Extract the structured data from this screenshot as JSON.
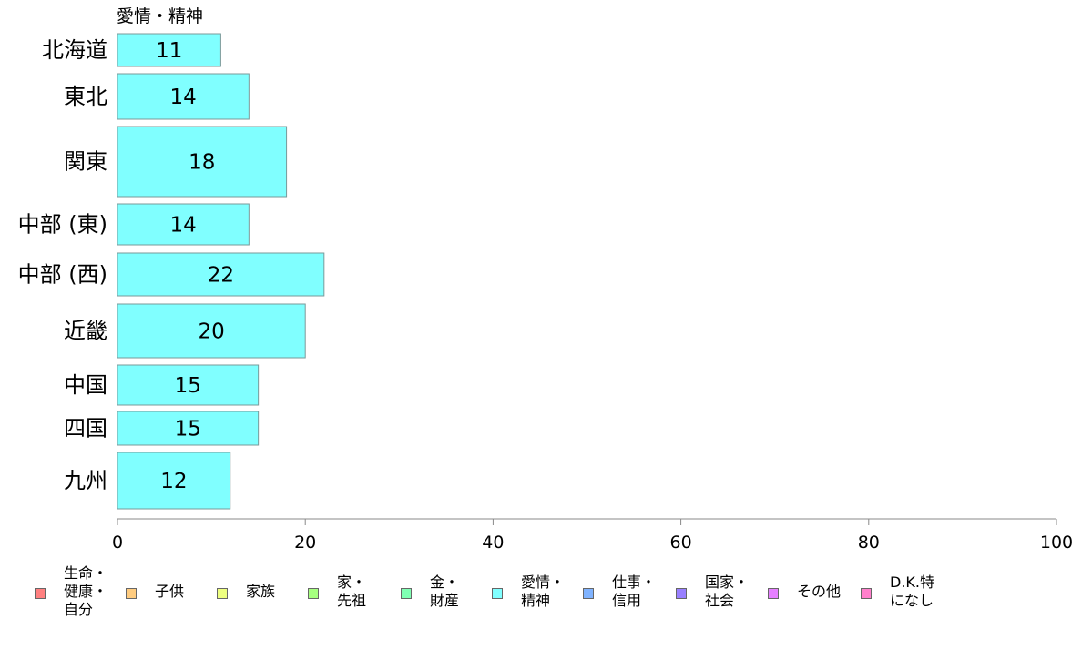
{
  "chart_data": {
    "type": "bar",
    "orientation": "horizontal",
    "series_title": "愛情・精神",
    "categories": [
      "北海道",
      "東北",
      "関東",
      "中部 (東)",
      "中部 (西)",
      "近畿",
      "中国",
      "四国",
      "九州"
    ],
    "values": [
      11,
      14,
      18,
      14,
      22,
      20,
      15,
      15,
      12
    ],
    "data_labels": [
      "11",
      "14",
      "18",
      "14",
      "22",
      "20",
      "15",
      "15",
      "12"
    ],
    "xlim": [
      0,
      100
    ],
    "x_ticks": [
      "0",
      "20",
      "40",
      "60",
      "80",
      "100"
    ],
    "bar_color": "#80ffff",
    "grid": false,
    "legend_position": "bottom"
  },
  "legend": [
    {
      "label": "生命・\n健康・\n自分",
      "color": "#ff8080"
    },
    {
      "label": "子供",
      "color": "#ffcc80"
    },
    {
      "label": "家族",
      "color": "#eeff80"
    },
    {
      "label": "家・\n先祖",
      "color": "#a6ff80"
    },
    {
      "label": "金・\n財産",
      "color": "#80ffb3"
    },
    {
      "label": "愛情・\n精神",
      "color": "#80ffff"
    },
    {
      "label": "仕事・\n信用",
      "color": "#80b3ff"
    },
    {
      "label": "国家・\n社会",
      "color": "#9980ff"
    },
    {
      "label": "その他",
      "color": "#e680ff"
    },
    {
      "label": "D.K.特\nになし",
      "color": "#ff80cc"
    }
  ]
}
